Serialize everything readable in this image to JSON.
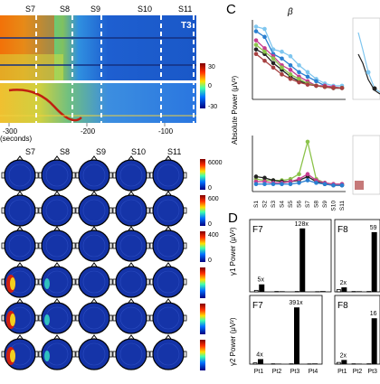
{
  "spectrogram": {
    "stages": [
      "S7",
      "S8",
      "S9",
      "S10",
      "S11"
    ],
    "channel_label": "T3",
    "x_ticks": [
      "-300",
      "-200",
      "-100"
    ],
    "x_unit": "(seconds)",
    "colorbar_ticks": [
      "30",
      "0",
      "-30"
    ]
  },
  "topomaps": {
    "stages": [
      "S7",
      "S8",
      "S9",
      "S10",
      "S11"
    ],
    "row_scales": [
      "6000",
      "0",
      "600",
      "0",
      "400",
      "0",
      "",
      "",
      "",
      ""
    ]
  },
  "panel_c": {
    "letter": "C",
    "beta_label": "β",
    "y_axis_label": "Absolute Power (μV²)",
    "x_ticks": [
      "S1",
      "S2",
      "S3",
      "S4",
      "S5",
      "S6",
      "S7",
      "S8",
      "S9",
      "S10",
      "S11"
    ]
  },
  "panel_d": {
    "letter": "D",
    "top_y_label": "γ1 Power (μV²)",
    "bottom_y_label": "γ2 Power (μV²)",
    "top_left_title": "F7",
    "top_right_title": "F8",
    "bottom_left_title": "F7",
    "bottom_right_title": "F8",
    "top_annotations": [
      "5x",
      "128x",
      "2x",
      "59"
    ],
    "bottom_annotations": [
      "4x",
      "391x",
      "2x",
      "16"
    ],
    "x_ticks": [
      "Pt1",
      "Pt2",
      "Pt3",
      "Pt4"
    ],
    "x_ticks_right": [
      "Pt1",
      "Pt2",
      "Pt3"
    ]
  },
  "chart_data": [
    {
      "type": "line",
      "title": "β",
      "ylabel": "Absolute Power (μV²)",
      "categories": [
        "S1",
        "S2",
        "S3",
        "S4",
        "S5",
        "S6",
        "S7",
        "S8",
        "S9",
        "S10",
        "S11"
      ],
      "series_top": [
        {
          "color": "#7fc6ef",
          "values": [
            64,
            62,
            44,
            42,
            38,
            30,
            24,
            18,
            14,
            12,
            12
          ]
        },
        {
          "color": "#2a7fd0",
          "values": [
            60,
            55,
            40,
            36,
            30,
            24,
            20,
            16,
            12,
            10,
            10
          ]
        },
        {
          "color": "#c63c8f",
          "values": [
            52,
            45,
            38,
            30,
            26,
            20,
            16,
            12,
            12,
            11,
            10
          ]
        },
        {
          "color": "#222222",
          "values": [
            44,
            40,
            32,
            26,
            20,
            16,
            14,
            12,
            11,
            10,
            10
          ]
        },
        {
          "color": "#8bc34a",
          "values": [
            48,
            42,
            36,
            28,
            22,
            18,
            14,
            12,
            11,
            10,
            10
          ]
        },
        {
          "color": "#a64040",
          "values": [
            40,
            34,
            28,
            22,
            18,
            15,
            13,
            12,
            11,
            10,
            10
          ]
        }
      ],
      "series_bottom": [
        {
          "color": "#8bc34a",
          "values": [
            10,
            9,
            9,
            9,
            10,
            14,
            40,
            10,
            7,
            6,
            6
          ]
        },
        {
          "color": "#222222",
          "values": [
            12,
            11,
            9,
            8,
            8,
            9,
            12,
            8,
            6,
            5,
            5
          ]
        },
        {
          "color": "#c63c8f",
          "values": [
            8,
            8,
            7,
            7,
            8,
            10,
            14,
            9,
            7,
            6,
            6
          ]
        },
        {
          "color": "#2a7fd0",
          "values": [
            6,
            6,
            6,
            6,
            6,
            7,
            9,
            7,
            6,
            5,
            5
          ]
        }
      ]
    },
    {
      "type": "bar",
      "title": "F7",
      "ylabel": "γ1 Power (μV²)",
      "categories": [
        "Pt1",
        "Pt2",
        "Pt3",
        "Pt4"
      ],
      "series": [
        {
          "name": "",
          "values": [
            2,
            0.5,
            0.5,
            0.3
          ]
        },
        {
          "name": "",
          "values": [
            10,
            0.8,
            85,
            1
          ]
        }
      ]
    },
    {
      "type": "bar",
      "title": "F7",
      "ylabel": "γ2 Power (μV²)",
      "categories": [
        "Pt1",
        "Pt2",
        "Pt3",
        "Pt4"
      ],
      "series": [
        {
          "name": "",
          "values": [
            1.5,
            0.4,
            0.4,
            0.3
          ]
        },
        {
          "name": "",
          "values": [
            6,
            0.6,
            68,
            0.8
          ]
        }
      ]
    }
  ]
}
